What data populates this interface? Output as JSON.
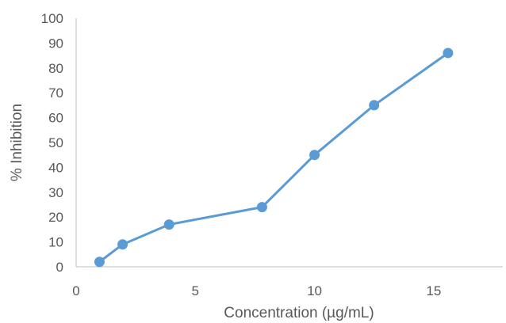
{
  "chart_data": {
    "type": "line",
    "title": "",
    "xlabel": "Concentration (µg/mL)",
    "ylabel": "% Inhibition",
    "xlim": [
      0,
      17.9
    ],
    "ylim": [
      0,
      100
    ],
    "xticks": [
      0,
      5,
      10,
      15
    ],
    "yticks": [
      0,
      10,
      20,
      30,
      40,
      50,
      60,
      70,
      80,
      90,
      100
    ],
    "grid": false,
    "legend": "none",
    "colors": {
      "series": "#5b9bd5",
      "axis": "#bfbfbf",
      "text": "#595959"
    },
    "series": [
      {
        "x": [
          0.98,
          1.95,
          3.9,
          7.8,
          10.0,
          12.5,
          15.6
        ],
        "y": [
          2,
          9,
          17,
          24,
          45,
          65,
          86
        ]
      }
    ]
  }
}
